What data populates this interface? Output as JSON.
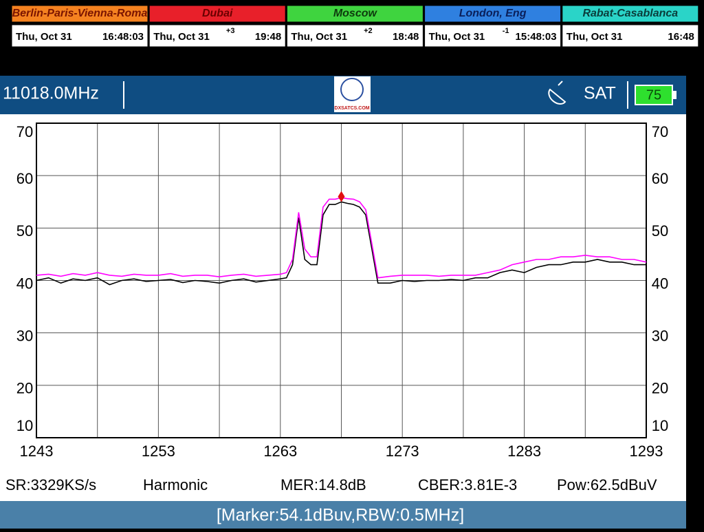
{
  "clocks": [
    {
      "city": "Berlin-Paris-Vienna-Roma",
      "color": "#f58220",
      "text_color": "#7a1400",
      "date": "Thu, Oct 31",
      "time": "16:48:03"
    },
    {
      "city": "Dubai",
      "color": "#e8202a",
      "text_color": "#6a0000",
      "date": "Thu, Oct 31",
      "offset": "+3",
      "time": "19:48"
    },
    {
      "city": "Moscow",
      "color": "#3fd43f",
      "text_color": "#0d3a0d",
      "date": "Thu, Oct 31",
      "offset": "+2",
      "time": "18:48"
    },
    {
      "city": "London, Eng",
      "color": "#2f80e0",
      "text_color": "#0a1f5a",
      "date": "Thu, Oct 31",
      "offset": "-1",
      "time": "15:48:03"
    },
    {
      "city": "Rabat-Casablanca",
      "color": "#2ad4c8",
      "text_color": "#0a3c3a",
      "date": "Thu, Oct 31",
      "time": "16:48"
    }
  ],
  "header": {
    "frequency": "11018.0MHz",
    "logo": "DXSATCS.COM",
    "mode": "SAT",
    "battery": 75
  },
  "chart_data": {
    "type": "line",
    "x": [
      1243,
      1244,
      1245,
      1246,
      1247,
      1248,
      1249,
      1250,
      1251,
      1252,
      1253,
      1254,
      1255,
      1256,
      1257,
      1258,
      1259,
      1260,
      1261,
      1262,
      1263,
      1263.5,
      1264,
      1264.5,
      1265,
      1265.5,
      1266,
      1266.5,
      1267,
      1267.5,
      1268,
      1268.5,
      1269,
      1269.5,
      1270,
      1270.5,
      1271,
      1272,
      1273,
      1274,
      1275,
      1276,
      1277,
      1278,
      1279,
      1280,
      1281,
      1282,
      1283,
      1284,
      1285,
      1286,
      1287,
      1288,
      1289,
      1290,
      1291,
      1292,
      1293
    ],
    "series": [
      {
        "color": "#ff00ff",
        "values": [
          41,
          41.2,
          40.8,
          41.3,
          41,
          41.5,
          41,
          40.8,
          41.2,
          41,
          41,
          41.3,
          40.8,
          41,
          41,
          40.7,
          41,
          41.2,
          40.8,
          41,
          41.2,
          41.5,
          44,
          53,
          46,
          44.5,
          44.5,
          54,
          55.5,
          55.5,
          55.8,
          55.6,
          55.5,
          55,
          53.5,
          47,
          40.5,
          40.8,
          41,
          41,
          41,
          40.8,
          41,
          41,
          41,
          41.5,
          42,
          43,
          43.5,
          44,
          44,
          44.5,
          44.5,
          44.8,
          44.5,
          44.5,
          44,
          44,
          43.5
        ]
      },
      {
        "color": "#000000",
        "values": [
          40,
          40.5,
          39.5,
          40.3,
          40,
          40.5,
          39.2,
          40,
          40.3,
          39.8,
          40,
          40.2,
          39.6,
          40,
          39.8,
          39.5,
          40,
          40.3,
          39.7,
          40,
          40.3,
          40.5,
          43,
          52,
          44,
          43,
          43,
          52.5,
          54.5,
          54.5,
          55,
          54.7,
          54.5,
          54,
          52.5,
          46,
          39.5,
          39.5,
          40,
          39.8,
          40,
          40,
          40.2,
          40,
          40.5,
          40.5,
          41.5,
          42,
          41.5,
          42.5,
          43,
          43,
          43.5,
          43.5,
          44,
          43.5,
          43.5,
          43,
          43
        ]
      }
    ],
    "marker": {
      "x": 1268,
      "y": 56
    },
    "xlim": [
      1243,
      1293
    ],
    "xticks": [
      1243,
      1253,
      1263,
      1273,
      1283,
      1293
    ],
    "xgrid": [
      1248,
      1258,
      1268,
      1278,
      1288
    ],
    "ylim": [
      10,
      70
    ],
    "yticks": [
      10,
      20,
      30,
      40,
      50,
      60,
      70
    ],
    "grid": true
  },
  "status": [
    "SR:3329KS/s",
    "Harmonic",
    "MER:14.8dB",
    "CBER:3.81E-3",
    "Pow:62.5dBuV"
  ],
  "footer": "[Marker:54.1dBuv,RBW:0.5MHz]"
}
